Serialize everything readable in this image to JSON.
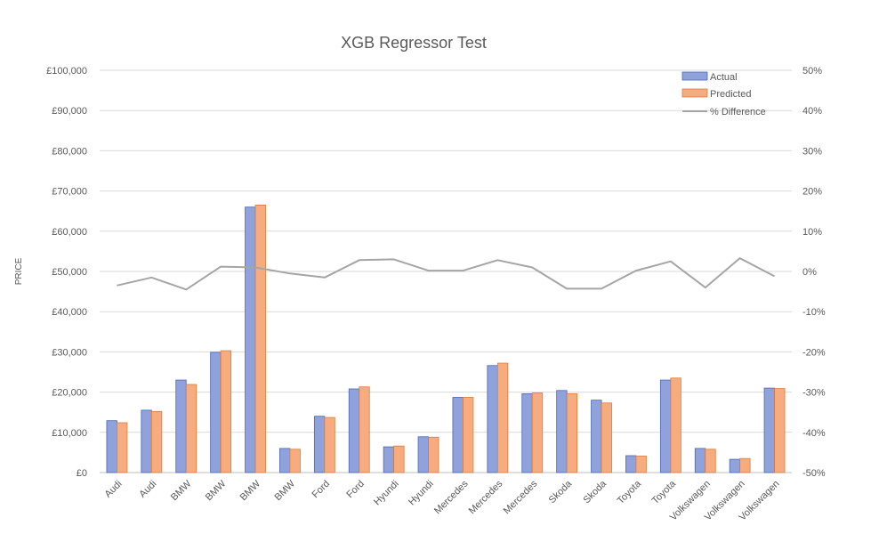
{
  "chart_data": {
    "type": "bar",
    "title": "XGB Regressor Test",
    "ylabel": "PRICE",
    "xlabel": "",
    "categories": [
      "Audi",
      "Audi",
      "BMW",
      "BMW",
      "BMW",
      "BMW",
      "Ford",
      "Ford",
      "Hyundi",
      "Hyundi",
      "Mercedes",
      "Mercedes",
      "Mercedes",
      "Skoda",
      "Skoda",
      "Toyota",
      "Toyota",
      "Volkswagen",
      "Volkswagen",
      "Volkswagen"
    ],
    "series": [
      {
        "name": "Actual",
        "type": "bar",
        "axis": "left",
        "color": "#8FA2DC",
        "values": [
          12900,
          15500,
          23000,
          29900,
          66000,
          6000,
          14000,
          20800,
          6400,
          8900,
          18700,
          26600,
          19600,
          20400,
          18000,
          4200,
          23000,
          6000,
          3300,
          21000
        ]
      },
      {
        "name": "Predicted",
        "type": "bar",
        "axis": "left",
        "color": "#F7AC80",
        "values": [
          12400,
          15200,
          21900,
          30300,
          66500,
          5800,
          13700,
          21300,
          6600,
          8800,
          18700,
          27200,
          19800,
          19600,
          17300,
          4100,
          23500,
          5800,
          3500,
          20900
        ]
      },
      {
        "name": "% Difference",
        "type": "line",
        "axis": "right",
        "color": "#A5A5A5",
        "values": [
          -3.5,
          -1.5,
          -4.5,
          1.2,
          1.0,
          -0.5,
          -1.5,
          2.8,
          3.0,
          0.2,
          0.2,
          2.8,
          1.0,
          -4.3,
          -4.3,
          0.2,
          2.5,
          -4.0,
          3.3,
          -1.2
        ]
      }
    ],
    "ylim": [
      0,
      100000
    ],
    "y_ticks": [
      "£0",
      "£10,000",
      "£20,000",
      "£30,000",
      "£40,000",
      "£50,000",
      "£60,000",
      "£70,000",
      "£80,000",
      "£90,000",
      "£100,000"
    ],
    "y2lim": [
      -50,
      50
    ],
    "y2_ticks": [
      "-50%",
      "-40%",
      "-30%",
      "-20%",
      "-10%",
      "0%",
      "10%",
      "20%",
      "30%",
      "40%",
      "50%"
    ],
    "grid": true,
    "legend_position": "top-right"
  }
}
